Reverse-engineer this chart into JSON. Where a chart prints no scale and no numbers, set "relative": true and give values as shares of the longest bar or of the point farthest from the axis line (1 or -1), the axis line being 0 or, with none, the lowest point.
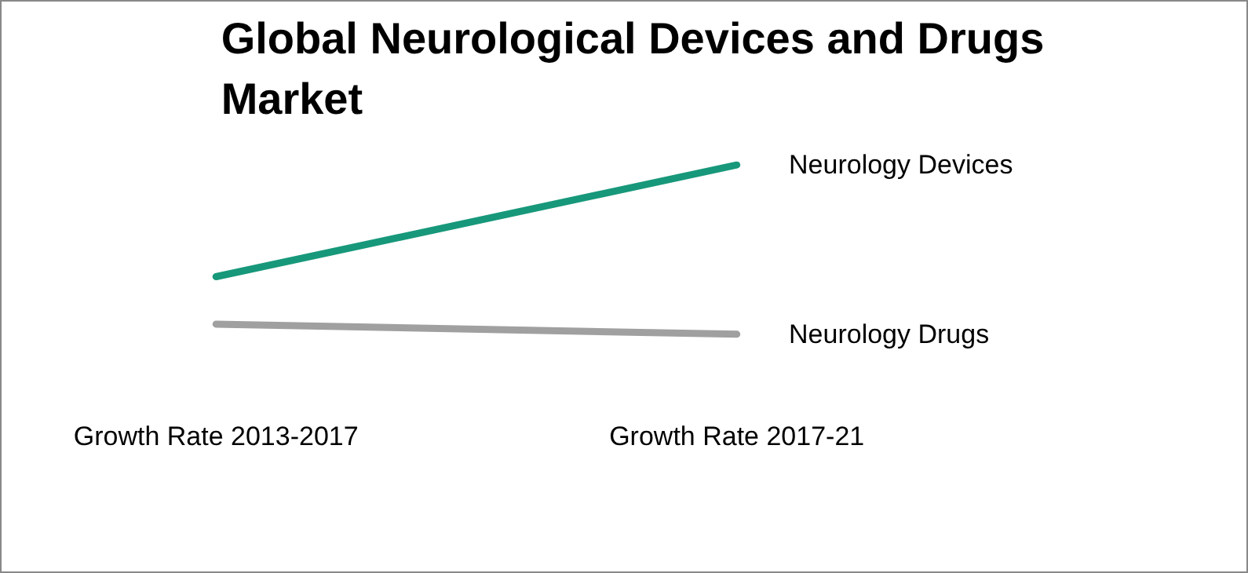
{
  "chart_data": {
    "type": "line",
    "title": "Global Neurological Devices and Drugs Market",
    "relative": true,
    "categories": [
      "Growth Rate 2013-2017",
      "Growth Rate 2017-21"
    ],
    "series": [
      {
        "name": "Neurology Devices",
        "color": "#17987a",
        "values": [
          0.34,
          1
        ]
      },
      {
        "name": "Neurology Drugs",
        "color": "#a0a0a0",
        "values": [
          0.06,
          0
        ]
      }
    ],
    "grid": false,
    "legend": false,
    "marker": "none",
    "line_style": "solid"
  }
}
